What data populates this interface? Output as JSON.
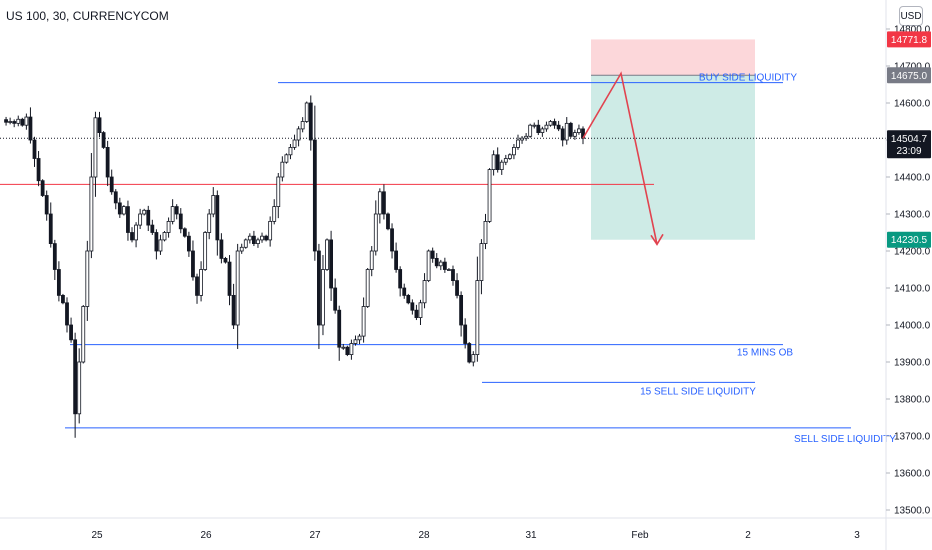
{
  "header": {
    "symbol": "US 100, 30, CURRENCYCOM",
    "currency": "USD"
  },
  "chart_data": {
    "type": "candlestick",
    "y_ticks": [
      14800,
      14700,
      14600,
      14500,
      14400,
      14300,
      14200,
      14100,
      14000,
      13900,
      13800,
      13700,
      13600,
      13500
    ],
    "y_tick_labels": [
      "14800.0",
      "14700.0",
      "14600.0",
      "14500.0",
      "14400.0",
      "14300.0",
      "14200.0",
      "14100.0",
      "14000.0",
      "13900.0",
      "13800.0",
      "13700.0",
      "13600.0",
      "13500.0"
    ],
    "ylim": [
      13490,
      14830
    ],
    "x_ticks": [
      "25",
      "26",
      "27",
      "28",
      "31",
      "Feb",
      "2",
      "3"
    ],
    "price_badges": [
      {
        "label": "14771.8",
        "value": 14771.8,
        "color": "#f23645",
        "countdown": ""
      },
      {
        "label": "14675.0",
        "value": 14675.0,
        "color": "#787b86",
        "countdown": ""
      },
      {
        "label": "14504.7",
        "value": 14504.7,
        "color": "#131722",
        "countdown": "23:09"
      },
      {
        "label": "14230.5",
        "value": 14230.5,
        "color": "#089981",
        "countdown": ""
      }
    ],
    "levels": [
      {
        "label": "BUY SIDE LIQUIDITY",
        "value": 14655,
        "color": "#2962ff"
      },
      {
        "label": "",
        "value": 14380,
        "color": "#f23645"
      },
      {
        "label": "15 MINS OB",
        "value": 13947,
        "color": "#2962ff"
      },
      {
        "label": "15 SELL SIDE LIQUIDITY",
        "value": 13845,
        "color": "#2962ff"
      },
      {
        "label": "SELL SIDE LIQUIDITY",
        "value": 13722,
        "color": "#2962ff"
      }
    ],
    "position": {
      "stop": 14771.8,
      "entry": 14675.0,
      "target": 14230.5,
      "current": 14504.7
    },
    "projection": [
      14504.7,
      14680,
      14218
    ],
    "closes": [
      14555,
      14548,
      14550,
      14545,
      14556,
      14540,
      14562,
      14500,
      14450,
      14390,
      14350,
      14300,
      14220,
      14150,
      14080,
      14060,
      14000,
      13960,
      13760,
      13900,
      14050,
      14200,
      14400,
      14560,
      14520,
      14480,
      14400,
      14360,
      14330,
      14300,
      14320,
      14250,
      14230,
      14270,
      14300,
      14310,
      14270,
      14250,
      14200,
      14230,
      14250,
      14280,
      14320,
      14300,
      14260,
      14240,
      14200,
      14130,
      14080,
      14150,
      14250,
      14300,
      14350,
      14230,
      14180,
      14170,
      14080,
      14000,
      14200,
      14210,
      14230,
      14240,
      14220,
      14230,
      14240,
      14230,
      14280,
      14320,
      14400,
      14440,
      14460,
      14480,
      14500,
      14530,
      14550,
      14600,
      14500,
      14200,
      14000,
      14150,
      14230,
      14100,
      14040,
      13940,
      13940,
      13920,
      13950,
      13960,
      13970,
      14050,
      14150,
      14200,
      14300,
      14360,
      14300,
      14260,
      14200,
      14150,
      14100,
      14080,
      14060,
      14040,
      14020,
      14060,
      14120,
      14200,
      14180,
      14160,
      14170,
      14150,
      14150,
      14120,
      14080,
      14000,
      13950,
      13900,
      13920,
      14120,
      14220,
      14280,
      14420,
      14460,
      14420,
      14440,
      14450,
      14460,
      14480,
      14500,
      14505,
      14510,
      14540,
      14540,
      14520,
      14530,
      14540,
      14550,
      14540,
      14530,
      14500,
      14545,
      14510,
      14520,
      14530,
      14504.7
    ]
  }
}
